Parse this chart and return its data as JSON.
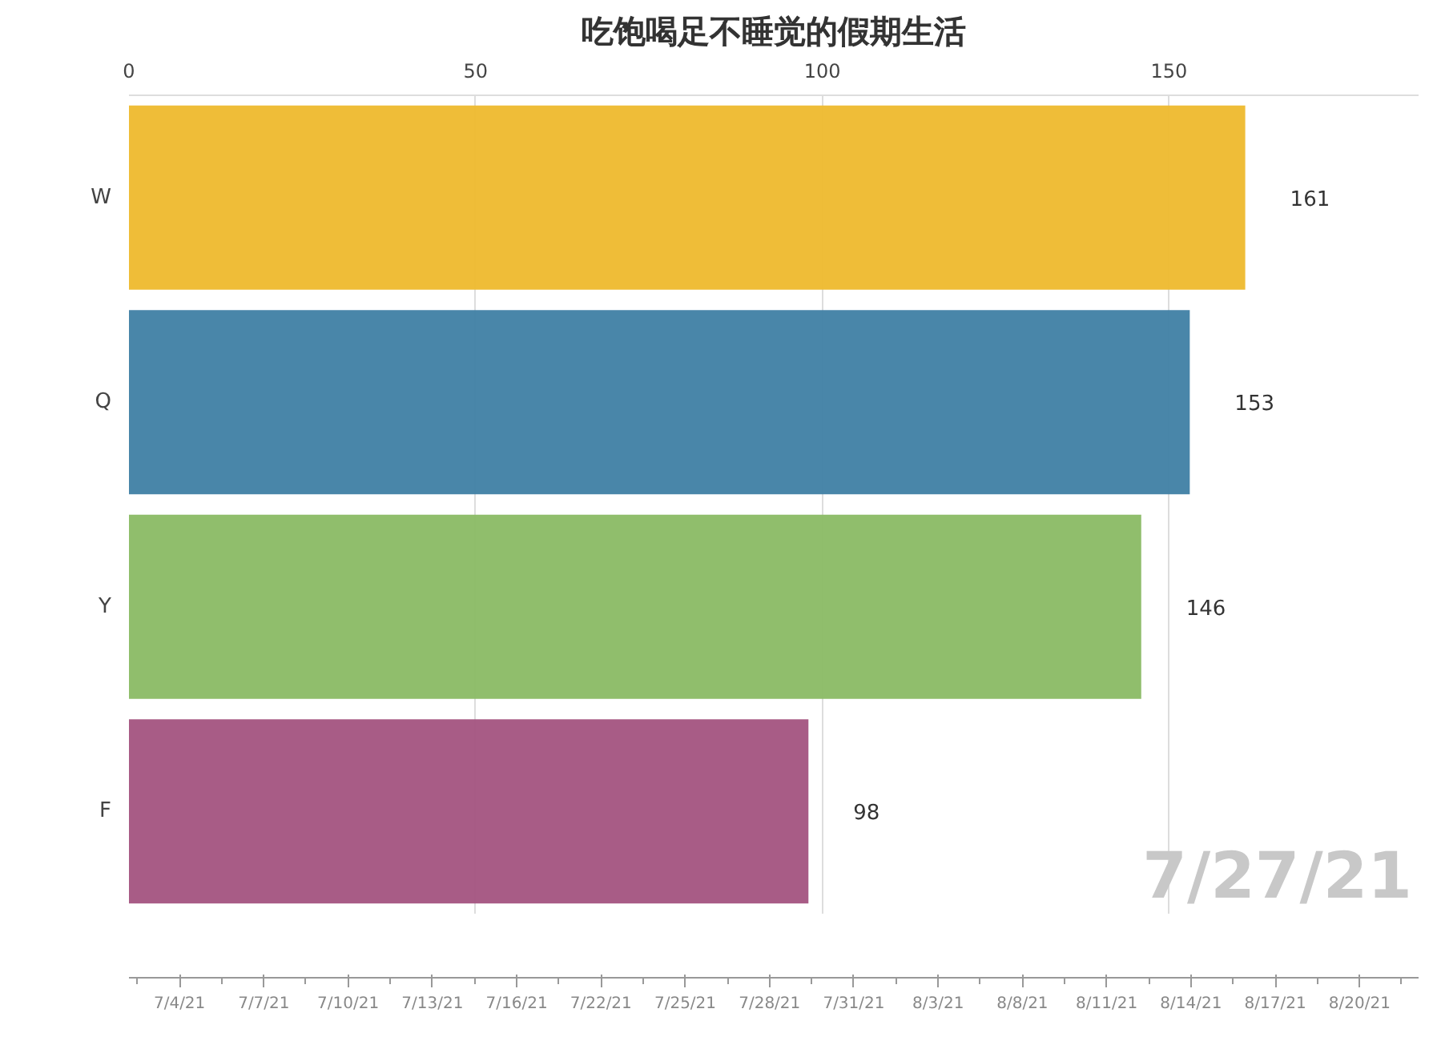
{
  "chart_data": [
    {
      "type": "bar",
      "orientation": "horizontal",
      "title": "吃饱喝足不睡觉的假期生活",
      "categories": [
        "W",
        "Q",
        "Y",
        "F"
      ],
      "values": [
        161,
        153,
        146,
        98
      ],
      "colors": [
        "#eeb92d",
        "#3f7fa4",
        "#8aba64",
        "#a3537f"
      ],
      "xlim": [
        0,
        186
      ],
      "xticks": [
        0,
        50,
        100,
        150
      ],
      "grid": "x",
      "data_labels": true,
      "annotations": [
        "7/27/21"
      ]
    },
    {
      "type": "other",
      "categories": [
        "7/4/21",
        "7/7/21",
        "7/10/21",
        "7/13/21",
        "7/16/21",
        "7/22/21",
        "7/25/21",
        "7/28/21",
        "7/31/21",
        "8/3/21",
        "8/8/21",
        "8/11/21",
        "8/14/21",
        "8/17/21",
        "8/20/21"
      ]
    }
  ]
}
